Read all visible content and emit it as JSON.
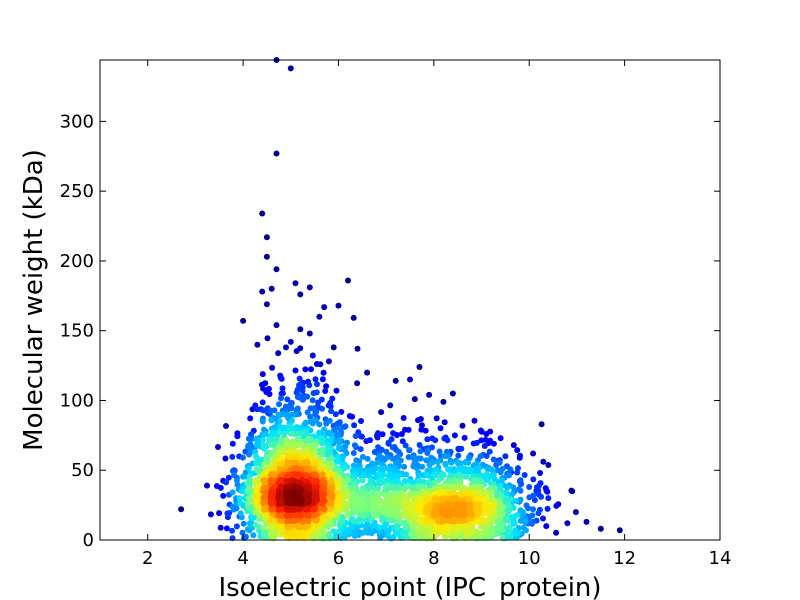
{
  "chart_data": {
    "type": "scatter",
    "title": "",
    "xlabel": "Isoelectric point (IPC_protein)",
    "ylabel": "Molecular weight (kDa)",
    "xlim": [
      1,
      14
    ],
    "ylim": [
      0,
      344
    ],
    "xticks": [
      2,
      4,
      6,
      8,
      10,
      12,
      14
    ],
    "yticks": [
      0,
      50,
      100,
      150,
      200,
      250,
      300
    ],
    "grid": false,
    "legend": "none",
    "colormap": [
      "#00007f",
      "#0000ff",
      "#0080ff",
      "#00e5ff",
      "#7dff7a",
      "#ffeb00",
      "#ff7f00",
      "#ff1a00",
      "#7f0000"
    ],
    "clusters": [
      {
        "x_center": 5.1,
        "y_center": 30,
        "x_spread": 0.55,
        "y_spread": 17,
        "count": 2100
      },
      {
        "x_center": 8.5,
        "y_center": 20,
        "x_spread": 0.75,
        "y_spread": 13,
        "count": 1300
      },
      {
        "x_center": 6.8,
        "y_center": 25,
        "x_spread": 0.7,
        "y_spread": 14,
        "count": 500
      }
    ],
    "outliers": [
      [
        4.7,
        344
      ],
      [
        5.0,
        338
      ],
      [
        4.7,
        277
      ],
      [
        4.4,
        234
      ],
      [
        4.5,
        217
      ],
      [
        4.5,
        203
      ],
      [
        4.7,
        194
      ],
      [
        6.2,
        186
      ],
      [
        5.1,
        184
      ],
      [
        5.4,
        181
      ],
      [
        4.6,
        180
      ],
      [
        5.2,
        176
      ],
      [
        4.4,
        178
      ],
      [
        4.5,
        169
      ],
      [
        6.0,
        168
      ],
      [
        5.6,
        160
      ],
      [
        4.0,
        157
      ],
      [
        4.7,
        154
      ],
      [
        5.2,
        151
      ],
      [
        5.4,
        148
      ],
      [
        4.3,
        140
      ],
      [
        4.9,
        138
      ],
      [
        5.0,
        142
      ],
      [
        5.9,
        138
      ],
      [
        6.4,
        137
      ],
      [
        5.8,
        128
      ],
      [
        7.7,
        124
      ],
      [
        6.6,
        120
      ],
      [
        7.2,
        114
      ],
      [
        7.5,
        115
      ],
      [
        7.9,
        104
      ],
      [
        8.4,
        105
      ],
      [
        8.2,
        99
      ],
      [
        7.6,
        101
      ],
      [
        9.1,
        76
      ],
      [
        9.4,
        73
      ],
      [
        9.5,
        60
      ],
      [
        2.7,
        22
      ],
      [
        10.9,
        35
      ],
      [
        11.9,
        7
      ],
      [
        11.5,
        8
      ],
      [
        11.2,
        13
      ],
      [
        10.4,
        30
      ],
      [
        10.8,
        12
      ],
      [
        10.0,
        38
      ],
      [
        9.8,
        42
      ]
    ]
  }
}
